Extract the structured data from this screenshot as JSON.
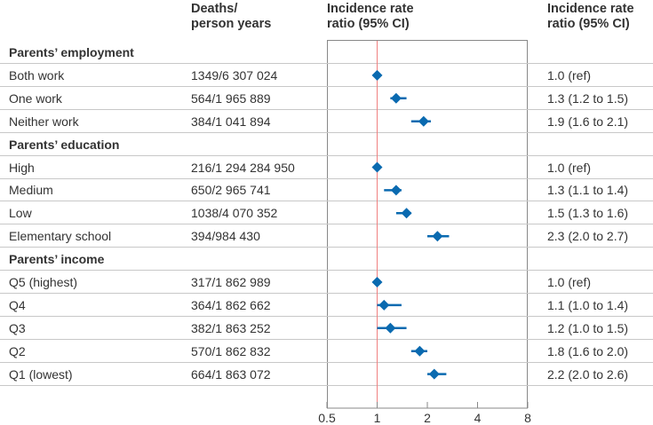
{
  "chart_data": {
    "type": "forest",
    "columns": {
      "deaths": "Deaths/\nperson years",
      "irr_plot": "Incidence rate\nratio (95% CI)",
      "irr_text": "Incidence rate\nratio (95% CI)"
    },
    "x_scale": "log2",
    "xlim": [
      0.5,
      8
    ],
    "x_ticks": [
      "0.5",
      "1",
      "2",
      "4",
      "8"
    ],
    "reference_line": 1,
    "colors": {
      "marker": "#0a6ab0",
      "reference": "#f08080"
    },
    "rows": [
      {
        "label": "Parents’ employment",
        "group": true
      },
      {
        "label": "Both work",
        "deaths": "1349/6 307 024",
        "irr": 1.0,
        "lo": 1.0,
        "hi": 1.0,
        "text": "1.0 (ref)"
      },
      {
        "label": "One work",
        "deaths": "564/1 965 889",
        "irr": 1.3,
        "lo": 1.2,
        "hi": 1.5,
        "text": "1.3 (1.2 to 1.5)"
      },
      {
        "label": "Neither work",
        "deaths": "384/1 041 894",
        "irr": 1.9,
        "lo": 1.6,
        "hi": 2.1,
        "text": "1.9 (1.6 to 2.1)"
      },
      {
        "label": "Parents’ education",
        "group": true
      },
      {
        "label": "High",
        "deaths": "216/1 294 284 950",
        "irr": 1.0,
        "lo": 1.0,
        "hi": 1.0,
        "text": "1.0 (ref)"
      },
      {
        "label": "Medium",
        "deaths": "650/2 965 741",
        "irr": 1.3,
        "lo": 1.1,
        "hi": 1.4,
        "text": "1.3 (1.1 to 1.4)"
      },
      {
        "label": "Low",
        "deaths": "1038/4 070 352",
        "irr": 1.5,
        "lo": 1.3,
        "hi": 1.6,
        "text": "1.5 (1.3 to 1.6)"
      },
      {
        "label": "Elementary school",
        "deaths": "394/984 430",
        "irr": 2.3,
        "lo": 2.0,
        "hi": 2.7,
        "text": "2.3 (2.0 to 2.7)"
      },
      {
        "label": "Parents’ income",
        "group": true
      },
      {
        "label": "Q5 (highest)",
        "deaths": "317/1 862 989",
        "irr": 1.0,
        "lo": 1.0,
        "hi": 1.0,
        "text": "1.0 (ref)"
      },
      {
        "label": "Q4",
        "deaths": "364/1 862 662",
        "irr": 1.1,
        "lo": 1.0,
        "hi": 1.4,
        "text": "1.1 (1.0 to 1.4)"
      },
      {
        "label": "Q3",
        "deaths": "382/1 863 252",
        "irr": 1.2,
        "lo": 1.0,
        "hi": 1.5,
        "text": "1.2 (1.0 to 1.5)"
      },
      {
        "label": "Q2",
        "deaths": "570/1 862 832",
        "irr": 1.8,
        "lo": 1.6,
        "hi": 2.0,
        "text": "1.8 (1.6 to 2.0)"
      },
      {
        "label": "Q1 (lowest)",
        "deaths": "664/1 863 072",
        "irr": 2.2,
        "lo": 2.0,
        "hi": 2.6,
        "text": "2.2 (2.0 to 2.6)"
      }
    ]
  }
}
